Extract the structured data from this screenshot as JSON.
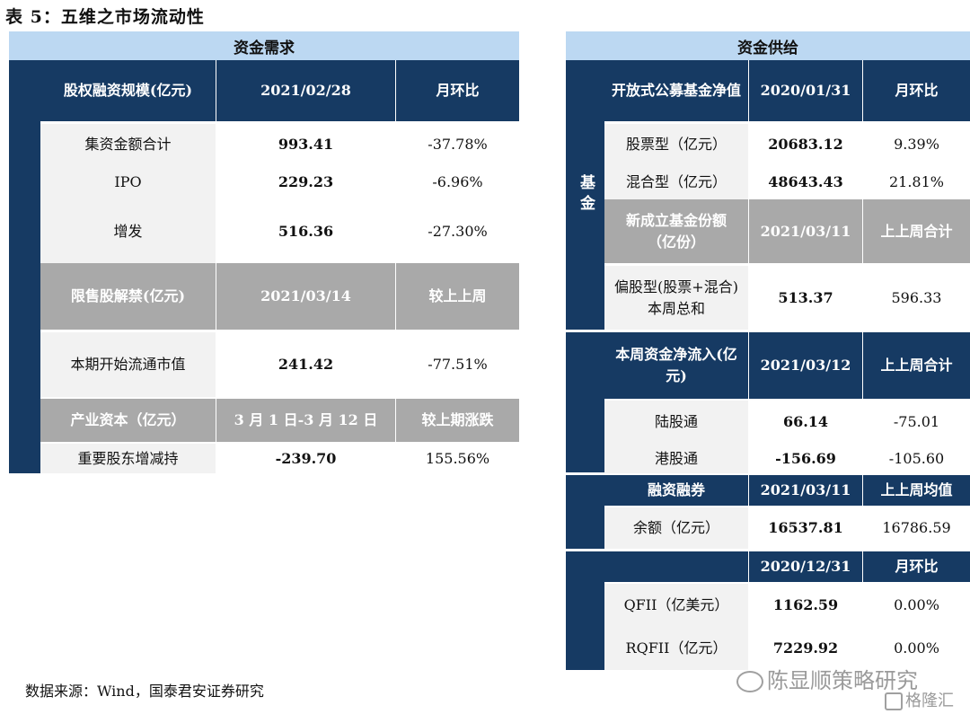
{
  "title": "表 5：五维之市场流动性",
  "source": "数据来源：Wind，国泰君安证券研究",
  "watermark": {
    "line1": "陈显顺策略研究",
    "line2": "格隆汇"
  },
  "left": {
    "header": "资金需求",
    "sec1": {
      "cols": [
        "股权融资规模(亿元)",
        "2021/02/28",
        "月环比"
      ],
      "rows": [
        [
          "集资金额合计",
          "993.41",
          "-37.78%"
        ],
        [
          "IPO",
          "229.23",
          "-6.96%"
        ],
        [
          "增发",
          "516.36",
          "-27.30%"
        ]
      ]
    },
    "sec2": {
      "cols": [
        "限售股解禁(亿元)",
        "2021/03/14",
        "较上上周"
      ],
      "row": [
        "本期开始流通市值",
        "241.42",
        "-77.51%"
      ]
    },
    "sec3": {
      "cols": [
        "产业资本（亿元）",
        "3 月 1 日-3 月 12 日",
        "较上期涨跌"
      ],
      "row": [
        "重要股东增减持",
        "-239.70",
        "155.56%"
      ]
    }
  },
  "right": {
    "header": "资金供给",
    "fund_side": "基金",
    "sec1": {
      "cols": [
        "开放式公募基金净值",
        "2020/01/31",
        "月环比"
      ],
      "rows": [
        [
          "股票型（亿元）",
          "20683.12",
          "9.39%"
        ],
        [
          "混合型（亿元）",
          "48643.43",
          "21.81%"
        ]
      ]
    },
    "sec2": {
      "cols": [
        "新成立基金份额（亿份）",
        "2021/03/11",
        "上上周合计"
      ],
      "row": [
        "偏股型(股票+混合)本周总和",
        "513.37",
        "596.33"
      ]
    },
    "sec3": {
      "cols": [
        "本周资金净流入(亿元)",
        "2021/03/12",
        "上上周合计"
      ],
      "rows": [
        [
          "陆股通",
          "66.14",
          "-75.01"
        ],
        [
          "港股通",
          "-156.69",
          "-105.60"
        ]
      ]
    },
    "sec4": {
      "cols": [
        "融资融券",
        "2021/03/11",
        "上上周均值"
      ],
      "row": [
        "余额（亿元）",
        "16537.81",
        "16786.59"
      ]
    },
    "sec5": {
      "cols": [
        "",
        "2020/12/31",
        "月环比"
      ],
      "rows": [
        [
          "QFII（亿美元）",
          "1162.59",
          "0.00%"
        ],
        [
          "RQFII（亿元）",
          "7229.92",
          "0.00%"
        ]
      ]
    }
  }
}
